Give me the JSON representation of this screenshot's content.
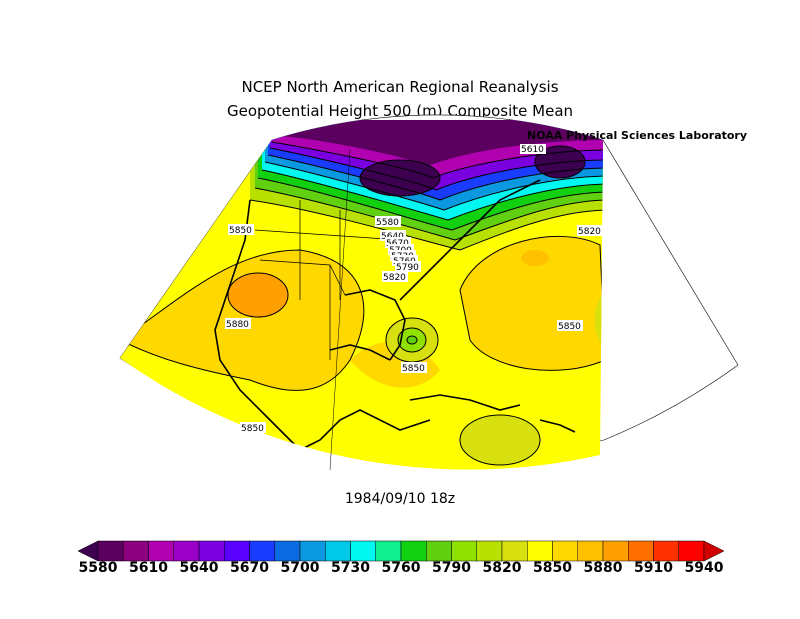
{
  "title_line1": "NCEP North American Regional Reanalysis",
  "title_line2": "Geopotential Height 500 (m) Composite Mean",
  "credit": "NOAA Physical Sciences Laboratory",
  "date": "1984/09/10 18z",
  "contour_labels": [
    {
      "text": "5850"
    },
    {
      "text": "5880"
    },
    {
      "text": "5850"
    },
    {
      "text": "5580"
    },
    {
      "text": "5640"
    },
    {
      "text": "5670"
    },
    {
      "text": "5700"
    },
    {
      "text": "5730"
    },
    {
      "text": "5760"
    },
    {
      "text": "5790"
    },
    {
      "text": "5820"
    },
    {
      "text": "5850"
    },
    {
      "text": "5820"
    },
    {
      "text": "5850"
    },
    {
      "text": "5610"
    }
  ],
  "colorbar": {
    "levels": [
      5580,
      5610,
      5640,
      5670,
      5700,
      5730,
      5760,
      5790,
      5820,
      5850,
      5880,
      5910,
      5940
    ],
    "colors": [
      "#3d0051",
      "#5c005f",
      "#8b007f",
      "#b000b0",
      "#9a00c8",
      "#7a00e0",
      "#5a00ff",
      "#1a3cff",
      "#0a6ce0",
      "#0a98e0",
      "#00c8e8",
      "#00f8f0",
      "#10f090",
      "#10d010",
      "#60d010",
      "#90e000",
      "#b8e000",
      "#d8e010",
      "#ffff00",
      "#ffd800",
      "#ffc000",
      "#ffa000",
      "#ff7000",
      "#ff3000",
      "#ff0000",
      "#d00000"
    ],
    "tick_labels": [
      "5580",
      "5610",
      "5640",
      "5670",
      "5700",
      "5730",
      "5760",
      "5790",
      "5820",
      "5850",
      "5880",
      "5910",
      "5940"
    ]
  }
}
